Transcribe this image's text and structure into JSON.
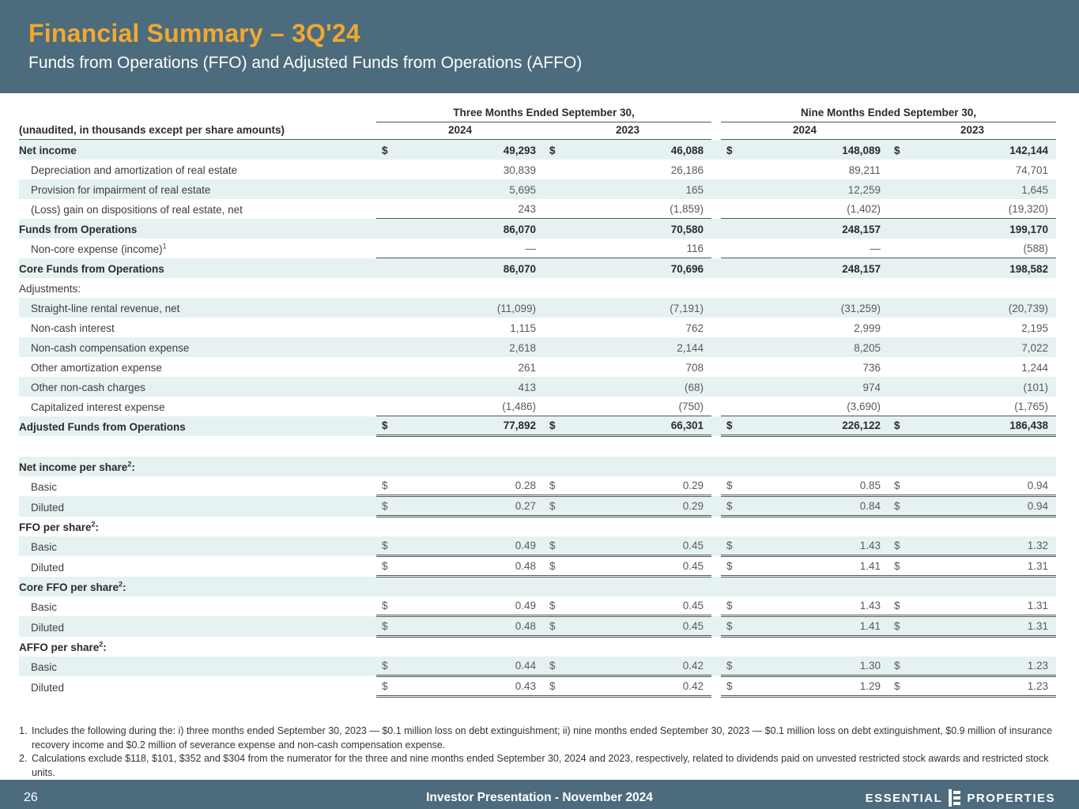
{
  "header": {
    "title": "Financial Summary – 3Q'24",
    "subtitle": "Funds from Operations (FFO) and Adjusted Funds from Operations (AFFO)"
  },
  "table": {
    "label_header": "(unaudited, in thousands except per share amounts)",
    "col_groups": [
      "Three Months Ended September 30,",
      "Nine Months Ended September 30,"
    ],
    "col_years": [
      "2024",
      "2023",
      "2024",
      "2023"
    ],
    "rows": [
      {
        "label": "Net income",
        "bold": true,
        "shaded": true,
        "dollar": true,
        "values": [
          "49,293",
          "46,088",
          "148,089",
          "142,144"
        ]
      },
      {
        "label": "Depreciation and amortization of real estate",
        "indent": true,
        "values": [
          "30,839",
          "26,186",
          "89,211",
          "74,701"
        ]
      },
      {
        "label": "Provision for impairment of real estate",
        "indent": true,
        "shaded": true,
        "values": [
          "5,695",
          "165",
          "12,259",
          "1,645"
        ]
      },
      {
        "label": "(Loss) gain on dispositions of real estate, net",
        "indent": true,
        "values": [
          "243",
          "(1,859)",
          "(1,402)",
          "(19,320)"
        ],
        "border": "single"
      },
      {
        "label": "Funds from Operations",
        "bold": true,
        "shaded": true,
        "values": [
          "86,070",
          "70,580",
          "248,157",
          "199,170"
        ]
      },
      {
        "label": "Non-core expense (income)",
        "sup": "1",
        "indent": true,
        "values": [
          "—",
          "116",
          "—",
          "(588)"
        ],
        "border": "single"
      },
      {
        "label": "Core Funds from Operations",
        "bold": true,
        "shaded": true,
        "values": [
          "86,070",
          "70,696",
          "248,157",
          "198,582"
        ]
      },
      {
        "label": "Adjustments:",
        "values": []
      },
      {
        "label": "Straight-line rental revenue, net",
        "indent": true,
        "shaded": true,
        "values": [
          "(11,099)",
          "(7,191)",
          "(31,259)",
          "(20,739)"
        ]
      },
      {
        "label": "Non-cash interest",
        "indent": true,
        "values": [
          "1,115",
          "762",
          "2,999",
          "2,195"
        ]
      },
      {
        "label": "Non-cash compensation expense",
        "indent": true,
        "shaded": true,
        "values": [
          "2,618",
          "2,144",
          "8,205",
          "7,022"
        ]
      },
      {
        "label": "Other amortization expense",
        "indent": true,
        "values": [
          "261",
          "708",
          "736",
          "1,244"
        ]
      },
      {
        "label": "Other non-cash charges",
        "indent": true,
        "shaded": true,
        "values": [
          "413",
          "(68)",
          "974",
          "(101)"
        ]
      },
      {
        "label": "Capitalized interest expense",
        "indent": true,
        "values": [
          "(1,486)",
          "(750)",
          "(3,690)",
          "(1,765)"
        ],
        "border": "single"
      },
      {
        "label": "Adjusted Funds from Operations",
        "bold": true,
        "shaded": true,
        "dollar": true,
        "values": [
          "77,892",
          "66,301",
          "226,122",
          "186,438"
        ],
        "border": "double"
      },
      {
        "spacer": true
      },
      {
        "label": "Net income per share",
        "sup": "2",
        "post": ":",
        "bold": true,
        "shaded": true,
        "values": []
      },
      {
        "label": "Basic",
        "indent": true,
        "dollar": true,
        "values": [
          "0.28",
          "0.29",
          "0.85",
          "0.94"
        ],
        "border": "double"
      },
      {
        "label": "Diluted",
        "indent": true,
        "shaded": true,
        "dollar": true,
        "values": [
          "0.27",
          "0.29",
          "0.84",
          "0.94"
        ],
        "border": "double"
      },
      {
        "label": "FFO per share",
        "sup": "2",
        "post": ":",
        "bold": true,
        "values": []
      },
      {
        "label": "Basic",
        "indent": true,
        "shaded": true,
        "dollar": true,
        "values": [
          "0.49",
          "0.45",
          "1.43",
          "1.32"
        ],
        "border": "double"
      },
      {
        "label": "Diluted",
        "indent": true,
        "dollar": true,
        "values": [
          "0.48",
          "0.45",
          "1.41",
          "1.31"
        ],
        "border": "double"
      },
      {
        "label": "Core FFO per share",
        "sup": "2",
        "post": ":",
        "bold": true,
        "shaded": true,
        "values": []
      },
      {
        "label": "Basic",
        "indent": true,
        "dollar": true,
        "values": [
          "0.49",
          "0.45",
          "1.43",
          "1.31"
        ],
        "border": "double"
      },
      {
        "label": "Diluted",
        "indent": true,
        "shaded": true,
        "dollar": true,
        "values": [
          "0.48",
          "0.45",
          "1.41",
          "1.31"
        ],
        "border": "double"
      },
      {
        "label": "AFFO per share",
        "sup": "2",
        "post": ":",
        "bold": true,
        "values": []
      },
      {
        "label": "Basic",
        "indent": true,
        "shaded": true,
        "dollar": true,
        "values": [
          "0.44",
          "0.42",
          "1.30",
          "1.23"
        ],
        "border": "double"
      },
      {
        "label": "Diluted",
        "indent": true,
        "dollar": true,
        "values": [
          "0.43",
          "0.42",
          "1.29",
          "1.23"
        ],
        "border": "double"
      }
    ]
  },
  "footnotes": [
    {
      "num": "1.",
      "text": "Includes the following during the: i) three months ended September 30, 2023 — $0.1 million loss on debt extinguishment; ii) nine months ended September 30, 2023 — $0.1 million loss on debt extinguishment, $0.9 million of insurance recovery income and $0.2 million of severance expense and non-cash compensation expense."
    },
    {
      "num": "2.",
      "text": "Calculations exclude $118, $101, $352 and $304 from the numerator for the three and nine months ended September 30, 2024 and 2023, respectively, related to dividends paid on unvested restricted stock awards and restricted stock units."
    }
  ],
  "footer": {
    "page_number": "26",
    "center_text": "Investor Presentation - November 2024",
    "logo_left": "ESSENTIAL",
    "logo_right": "PROPERTIES"
  }
}
